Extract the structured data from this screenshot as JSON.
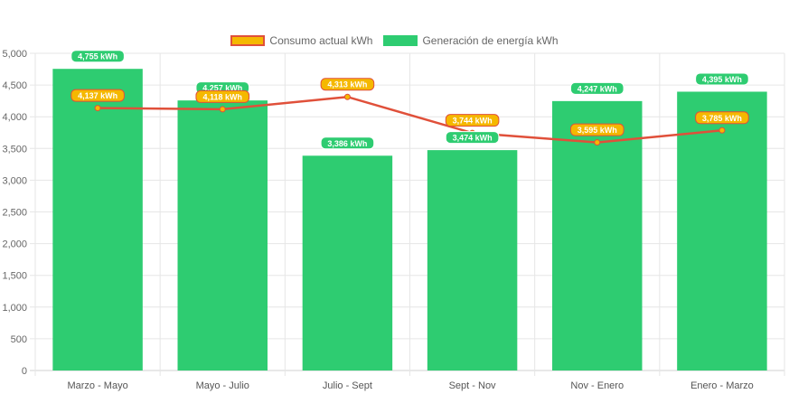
{
  "chart_data": {
    "type": "bar",
    "categories": [
      "Marzo - Mayo",
      "Mayo - Julio",
      "Julio - Sept",
      "Sept - Nov",
      "Nov - Enero",
      "Enero - Marzo"
    ],
    "series": [
      {
        "name": "Consumo actual kWh",
        "type": "line",
        "values": [
          4137,
          4118,
          4313,
          3744,
          3595,
          3785
        ],
        "labels": [
          "4,137 kWh",
          "4,118 kWh",
          "4,313 kWh",
          "3,744 kWh",
          "3,595 kWh",
          "3,785 kWh"
        ],
        "line_color": "#e0503a",
        "label_color": "#f5b800"
      },
      {
        "name": "Generación de energía kWh",
        "type": "bar",
        "values": [
          4755,
          4257,
          3386,
          3474,
          4247,
          4395
        ],
        "labels": [
          "4,755 kWh",
          "4,257 kWh",
          "3,386 kWh",
          "3,474 kWh",
          "4,247 kWh",
          "4,395 kWh"
        ],
        "color": "#2ecc71"
      }
    ],
    "ylim": [
      0,
      5000
    ],
    "y_ticks": [
      "0",
      "500",
      "1,000",
      "1,500",
      "2,000",
      "2,500",
      "3,000",
      "3,500",
      "4,000",
      "4,500",
      "5,000"
    ],
    "grid": true,
    "legend_position": "top-center"
  }
}
